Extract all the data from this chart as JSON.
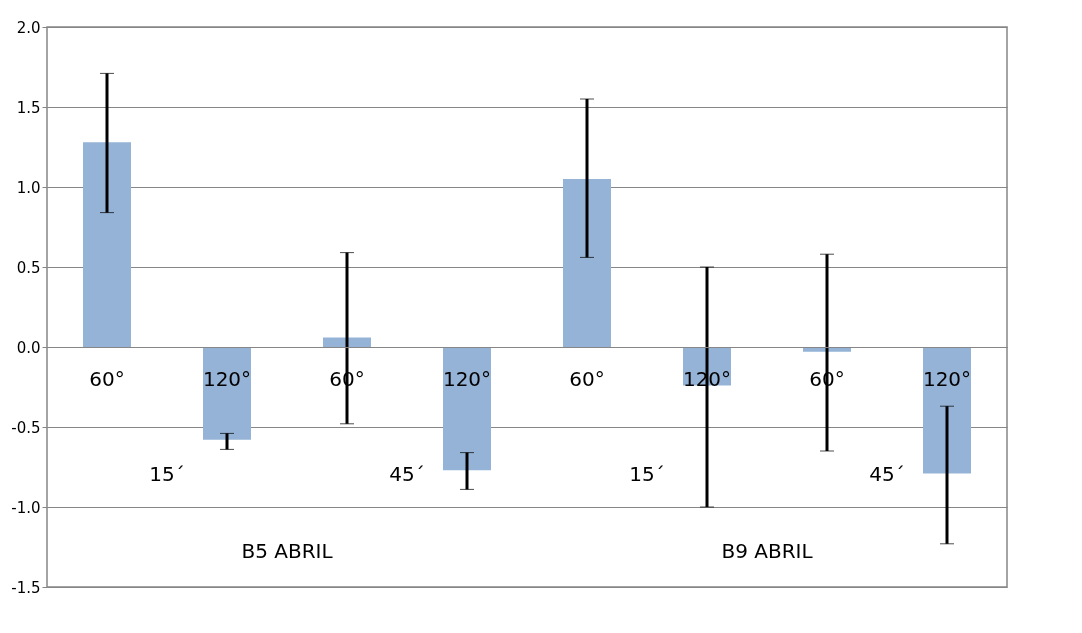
{
  "chart_data": {
    "type": "bar",
    "categories": [
      "60°",
      "120°",
      "60°",
      "120°",
      "60°",
      "120°",
      "60°",
      "120°"
    ],
    "values": [
      1.28,
      -0.58,
      0.06,
      -0.77,
      1.05,
      -0.24,
      -0.03,
      -0.79
    ],
    "errors": [
      [
        0.84,
        1.71
      ],
      [
        -0.64,
        -0.54
      ],
      [
        -0.48,
        0.59
      ],
      [
        -0.89,
        -0.66
      ],
      [
        0.56,
        1.55
      ],
      [
        -1.0,
        0.5
      ],
      [
        -0.65,
        0.58
      ],
      [
        -1.23,
        -0.37
      ]
    ],
    "color": "#95b3d7",
    "ylim": [
      -1.5,
      2.0
    ],
    "yticks": [
      -1.5,
      {
        "value": -1.0,
        "label": "-1.0"
      },
      -0.5,
      {
        "value": 0.0,
        "label": "0.0"
      },
      0.5,
      {
        "value": 1.0,
        "label": "1.0"
      },
      1.5,
      {
        "value": 2.0,
        "label": "2.0"
      }
    ],
    "grid": "y",
    "annotations": [
      "15´",
      "45´",
      "15´",
      "45´",
      "B5 ABRIL",
      "B9 ABRIL"
    ]
  }
}
